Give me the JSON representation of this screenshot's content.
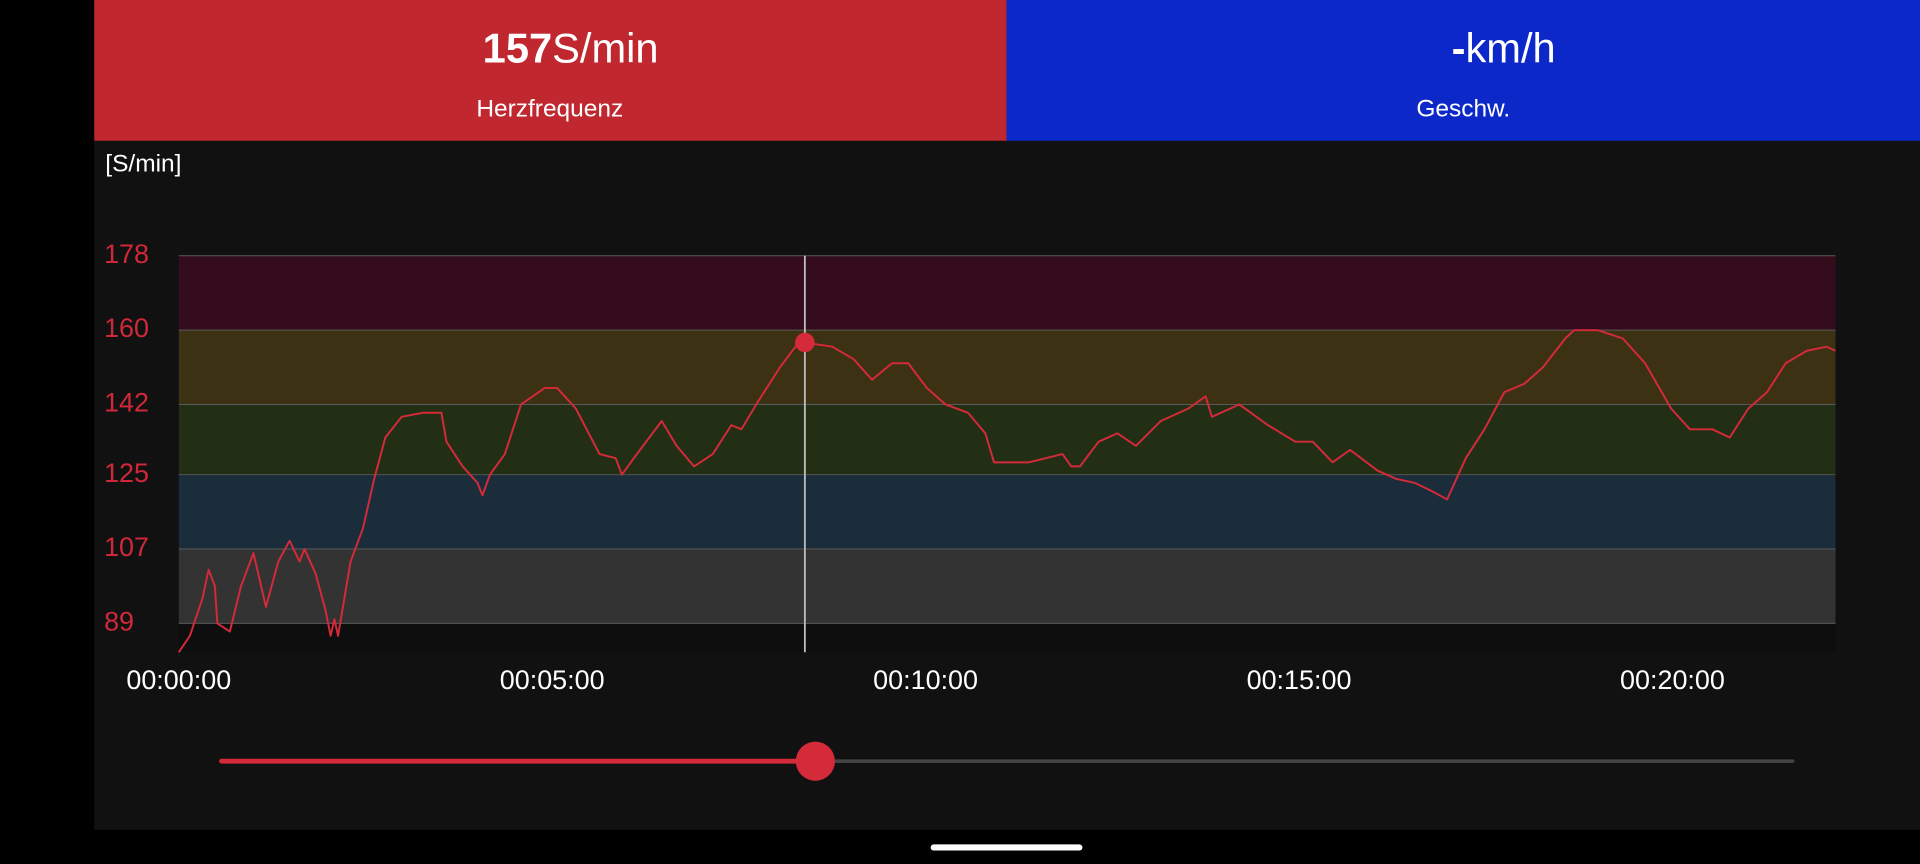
{
  "header": {
    "heart_rate": {
      "unit": "S/min",
      "label": "Herzfrequenz"
    },
    "speed": {
      "value": "-",
      "unit": "km/h",
      "label": "Geschw."
    }
  },
  "chart_data": {
    "type": "line",
    "y_label": "[S/min]",
    "color": "#d42a3a",
    "x": [
      0,
      9,
      19,
      24,
      29,
      31,
      41,
      50,
      60,
      70,
      80,
      89,
      97,
      101,
      110,
      118,
      122,
      125,
      128,
      138,
      148,
      157,
      166,
      179,
      196,
      211,
      215,
      228,
      240,
      244,
      250,
      262,
      275,
      294,
      304,
      319,
      338,
      351,
      356,
      368,
      388,
      400,
      414,
      429,
      444,
      452,
      466,
      483,
      498,
      503,
      525,
      542,
      557,
      573,
      586,
      601,
      616,
      634,
      648,
      655,
      675,
      683,
      710,
      717,
      724,
      739,
      754,
      769,
      789,
      811,
      825,
      830,
      852,
      875,
      897,
      911,
      927,
      941,
      963,
      978,
      993,
      1007,
      1019,
      1034,
      1049,
      1065,
      1081,
      1096,
      1114,
      1121,
      1140,
      1160,
      1178,
      1199,
      1214,
      1232,
      1246,
      1261,
      1276,
      1291,
      1308,
      1324,
      1331
    ],
    "values": [
      82,
      86,
      95,
      102,
      98,
      89,
      87,
      98,
      106,
      93,
      104,
      109,
      104,
      107,
      101,
      92,
      86,
      90,
      86,
      104,
      112,
      124,
      134,
      139,
      140,
      140,
      133,
      127,
      123,
      120,
      125,
      130,
      142,
      146,
      146,
      141,
      130,
      129,
      125,
      130,
      138,
      132,
      127,
      130,
      137,
      136,
      143,
      151,
      157,
      157,
      156,
      153,
      148,
      152,
      152,
      146,
      142,
      140,
      135,
      128,
      128,
      128,
      130,
      127,
      127,
      133,
      135,
      132,
      138,
      141,
      144,
      139,
      142,
      137,
      133,
      133,
      128,
      131,
      126,
      124,
      123,
      121,
      119,
      129,
      136,
      145,
      147,
      151,
      158,
      160,
      160,
      158,
      152,
      141,
      136,
      136,
      134,
      141,
      145,
      152,
      155,
      156,
      155
    ],
    "xlim": [
      0,
      1331
    ],
    "xticks": [
      {
        "value": 0,
        "label": "00:00:00"
      },
      {
        "value": 300,
        "label": "00:05:00"
      },
      {
        "value": 600,
        "label": "00:10:00"
      },
      {
        "value": 900,
        "label": "00:15:00"
      },
      {
        "value": 1200,
        "label": "00:20:00"
      }
    ],
    "ylim": [
      82,
      178
    ],
    "yticks": [
      89,
      107,
      125,
      142,
      160,
      178
    ],
    "zone_colors": [
      "#333333",
      "#1b2d3a",
      "#232f15",
      "#3c3113",
      "#340c1b"
    ],
    "cursor": {
      "x": 503,
      "value": 157
    },
    "grid": true
  }
}
